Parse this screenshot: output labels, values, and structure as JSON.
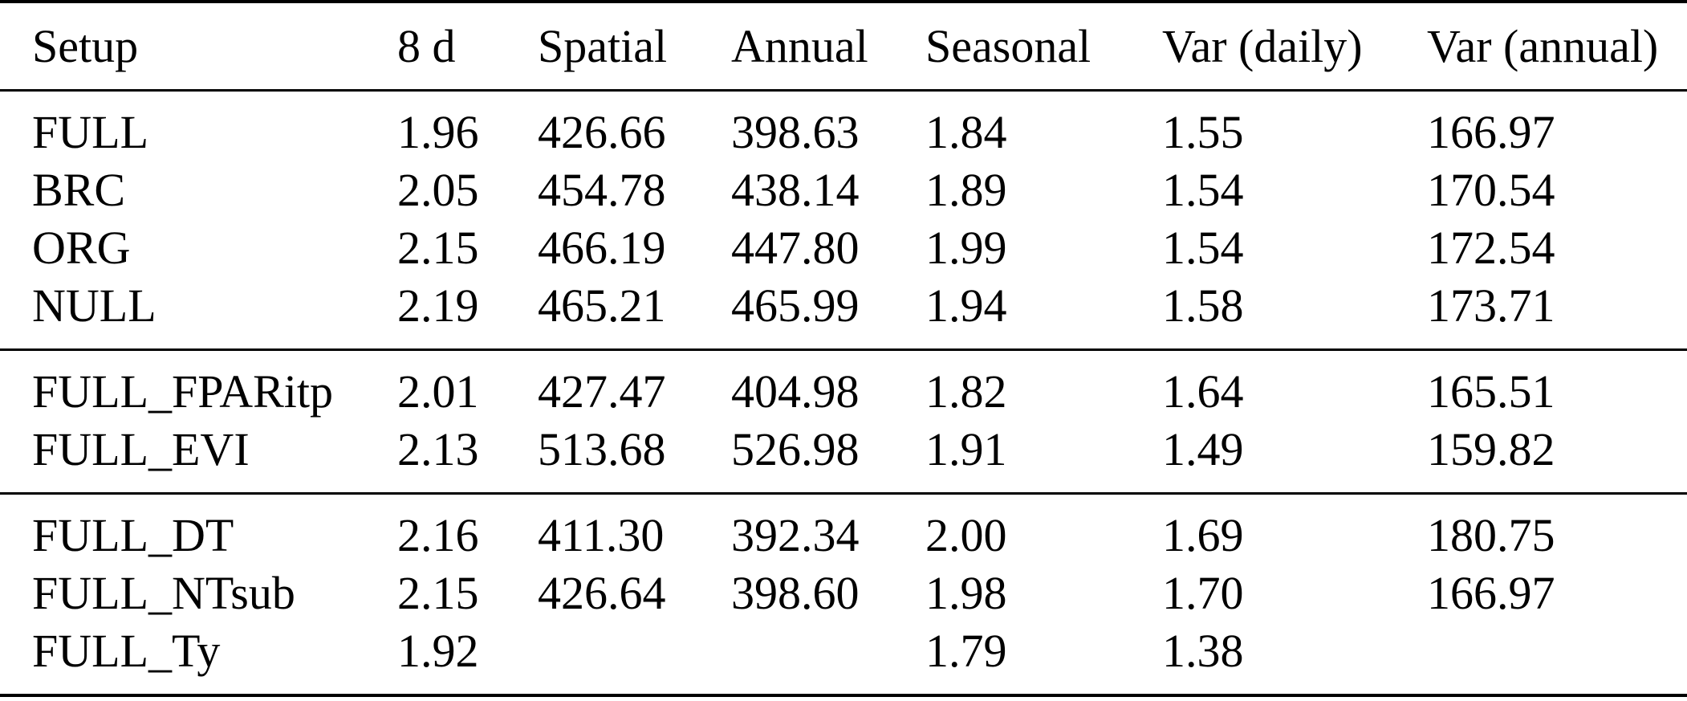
{
  "colors": {
    "background": "#ffffff",
    "text": "#000000",
    "rule": "#000000"
  },
  "table": {
    "columns": [
      "Setup",
      "8 d",
      "Spatial",
      "Annual",
      "Seasonal",
      "Var (daily)",
      "Var (annual)"
    ],
    "groups": [
      {
        "rows": [
          [
            "FULL",
            "1.96",
            "426.66",
            "398.63",
            "1.84",
            "1.55",
            "166.97"
          ],
          [
            "BRC",
            "2.05",
            "454.78",
            "438.14",
            "1.89",
            "1.54",
            "170.54"
          ],
          [
            "ORG",
            "2.15",
            "466.19",
            "447.80",
            "1.99",
            "1.54",
            "172.54"
          ],
          [
            "NULL",
            "2.19",
            "465.21",
            "465.99",
            "1.94",
            "1.58",
            "173.71"
          ]
        ]
      },
      {
        "rows": [
          [
            "FULL_FPARitp",
            "2.01",
            "427.47",
            "404.98",
            "1.82",
            "1.64",
            "165.51"
          ],
          [
            "FULL_EVI",
            "2.13",
            "513.68",
            "526.98",
            "1.91",
            "1.49",
            "159.82"
          ]
        ]
      },
      {
        "rows": [
          [
            "FULL_DT",
            "2.16",
            "411.30",
            "392.34",
            "2.00",
            "1.69",
            "180.75"
          ],
          [
            "FULL_NTsub",
            "2.15",
            "426.64",
            "398.60",
            "1.98",
            "1.70",
            "166.97"
          ],
          [
            "FULL_Ty",
            "1.92",
            "",
            "",
            "1.79",
            "1.38",
            ""
          ]
        ]
      }
    ]
  }
}
